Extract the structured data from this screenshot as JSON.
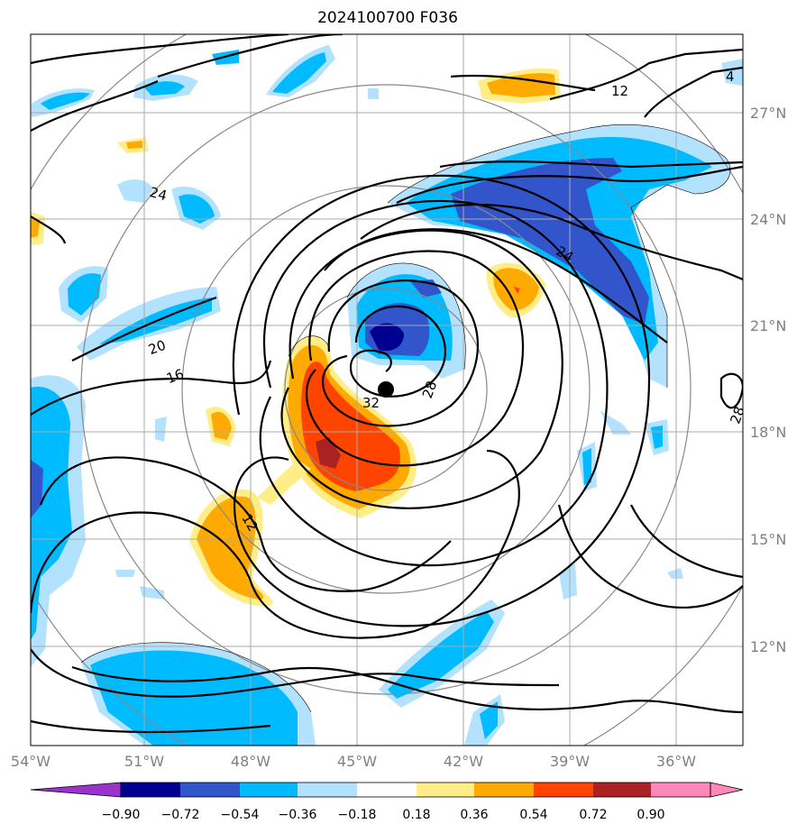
{
  "map": {
    "title": "2024100700 F036",
    "lon_ticks": [
      "54°W",
      "51°W",
      "48°W",
      "45°W",
      "42°W",
      "39°W",
      "36°W"
    ],
    "lat_ticks": [
      "12°N",
      "15°N",
      "18°N",
      "21°N",
      "24°N",
      "27°N"
    ],
    "contour_labels": [
      "12",
      "12",
      "16",
      "20",
      "24",
      "24",
      "28",
      "32",
      "28",
      "4"
    ],
    "center_marker": {
      "label": "storm-center",
      "lon": -44.3,
      "lat": 19.0
    },
    "range_rings": 4
  },
  "colorbar": {
    "tick_labels": [
      "−0.90",
      "−0.72",
      "−0.54",
      "−0.36",
      "−0.18",
      "0.18",
      "0.36",
      "0.54",
      "0.72",
      "0.90"
    ],
    "colors": [
      "#9933cc",
      "#000090",
      "#3355cc",
      "#00bbff",
      "#b3e2ff",
      "#ffffff",
      "#ffee88",
      "#ffaa00",
      "#ff4400",
      "#aa2222",
      "#ff88bb"
    ]
  },
  "colors": {
    "grid": "#aaaaaa",
    "rings": "#888888",
    "contour": "#000000",
    "axis_text": "#808080"
  }
}
